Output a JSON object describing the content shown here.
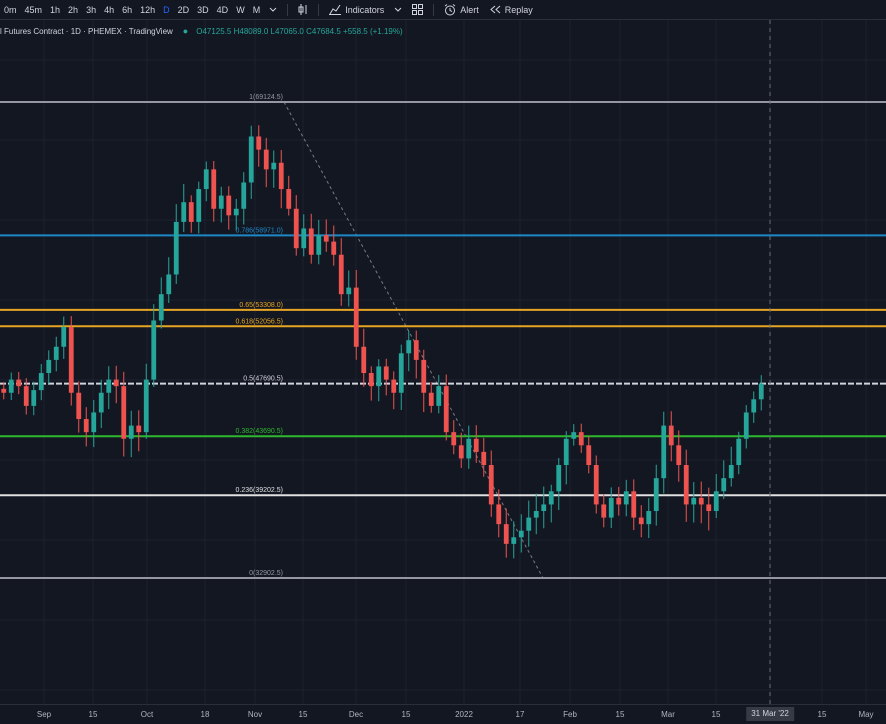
{
  "toolbar": {
    "timeframes": [
      "0m",
      "45m",
      "1h",
      "2h",
      "3h",
      "4h",
      "6h",
      "12h",
      "D",
      "2D",
      "3D",
      "4D",
      "W",
      "M"
    ],
    "active_timeframe": "D",
    "indicators_label": "Indicators",
    "alert_label": "Alert",
    "replay_label": "Replay"
  },
  "legend": {
    "symbol": "l Futures Contract · 1D · PHEMEX · TradingView",
    "ohlc": "O47125.5 H48089.0 L47065.0 C47684.5 +558.5 (+1.19%)"
  },
  "fib": [
    {
      "label": "1(69124.5)",
      "price": 69124.5,
      "color": "#9598a1"
    },
    {
      "label": "0.786(58971.0)",
      "price": 58971.0,
      "color": "#1e88c7"
    },
    {
      "label": "0.65(53308.0)",
      "price": 53308.0,
      "color": "#e6a623"
    },
    {
      "label": "0.618(52056.5)",
      "price": 52056.5,
      "color": "#e6a623"
    },
    {
      "label": "0.5(47690.5)",
      "price": 47690.5,
      "color": "#d1d4dc"
    },
    {
      "label": "0.382(43690.5)",
      "price": 43690.5,
      "color": "#2eb82e"
    },
    {
      "label": "0.236(39202.5)",
      "price": 39202.5,
      "color": "#e0e0e0"
    },
    {
      "label": "0(32902.5)",
      "price": 32902.5,
      "color": "#9598a1"
    }
  ],
  "time_axis": {
    "ticks": [
      "Sep",
      "15",
      "Oct",
      "18",
      "Nov",
      "15",
      "Dec",
      "15",
      "2022",
      "17",
      "Feb",
      "15",
      "Mar",
      "15",
      "15",
      "May"
    ],
    "crosshair_label": "31 Mar '22"
  },
  "colors": {
    "up": "#26a69a",
    "down": "#ef5350",
    "background": "#131722"
  },
  "chart_data": {
    "type": "candlestick",
    "price_range": [
      30000,
      72000
    ],
    "x_axis_labels": [
      "Sep",
      "15",
      "Oct",
      "18",
      "Nov",
      "15",
      "Dec",
      "15",
      "2022",
      "17",
      "Feb",
      "15",
      "Mar",
      "15",
      "31 Mar '22",
      "15",
      "May"
    ],
    "series": [
      {
        "name": "Close (approx)",
        "values": [
          47000,
          48000,
          47500,
          46000,
          47200,
          48500,
          49500,
          50500,
          52000,
          47000,
          45000,
          44000,
          45500,
          47000,
          48000,
          47500,
          43500,
          44500,
          44000,
          48000,
          52500,
          54500,
          56000,
          60000,
          61500,
          60000,
          62500,
          64000,
          61000,
          62000,
          60500,
          61000,
          63000,
          66500,
          65500,
          64000,
          64500,
          62500,
          61000,
          58000,
          59500,
          57500,
          59000,
          58500,
          57500,
          54500,
          55000,
          50500,
          48500,
          47500,
          49000,
          48000,
          47000,
          50000,
          51000,
          49500,
          47000,
          46000,
          47500,
          44000,
          43000,
          42000,
          43500,
          42500,
          41500,
          38500,
          37000,
          35500,
          36000,
          36500,
          37500,
          38000,
          38500,
          39500,
          41500,
          43500,
          44000,
          43000,
          41500,
          38500,
          37500,
          39000,
          38500,
          39500,
          37500,
          37000,
          38000,
          40500,
          44500,
          43000,
          41500,
          38500,
          39000,
          38500,
          38000,
          39500,
          40500,
          41500,
          43500,
          45500,
          46500,
          47700
        ]
      }
    ]
  }
}
